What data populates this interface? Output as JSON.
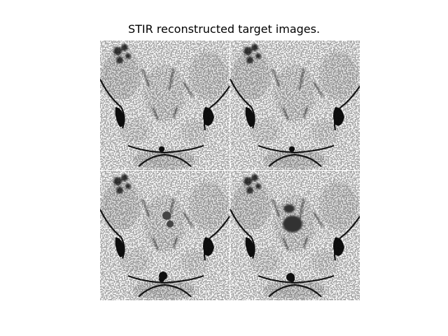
{
  "title": "STIR reconstructed target images.",
  "grid": {
    "rows": 2,
    "cols": 2
  },
  "panels": [
    {
      "id": "top-left"
    },
    {
      "id": "top-right"
    },
    {
      "id": "bottom-left"
    },
    {
      "id": "bottom-right"
    }
  ]
}
